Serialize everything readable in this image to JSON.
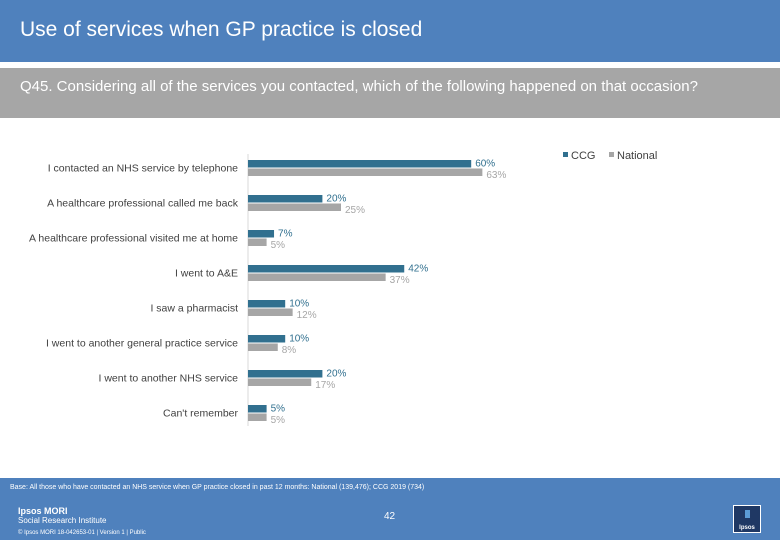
{
  "header": {
    "title": "Use of services when GP practice is closed",
    "question": "Q45. Considering all of the services you contacted, which of the following happened on that occasion?"
  },
  "chart_data": {
    "type": "bar",
    "orientation": "horizontal",
    "categories": [
      "I contacted an NHS service by telephone",
      "A healthcare professional called me back",
      "A healthcare professional visited me at home",
      "I went to A&E",
      "I saw a pharmacist",
      "I went to another general practice service",
      "I went to another NHS service",
      "Can't remember"
    ],
    "series": [
      {
        "name": "CCG",
        "color": "#31708f",
        "values": [
          60,
          20,
          7,
          42,
          10,
          10,
          20,
          5
        ]
      },
      {
        "name": "National",
        "color": "#a6a6a6",
        "values": [
          63,
          25,
          5,
          37,
          12,
          8,
          17,
          5
        ]
      }
    ],
    "value_suffix": "%",
    "legend": "top-right",
    "xlim": [
      0,
      100
    ]
  },
  "footer": {
    "base": "Base: All those who have contacted an NHS service when GP practice closed in past 12 months: National (139,476); CCG 2019 (734)",
    "logo_line1": "Ipsos MORI",
    "logo_line2": "Social Research Institute",
    "copyright": "© Ipsos MORI    18-042653-01 | Version 1 | Public",
    "page_number": "42",
    "badge": "Ipsos"
  }
}
